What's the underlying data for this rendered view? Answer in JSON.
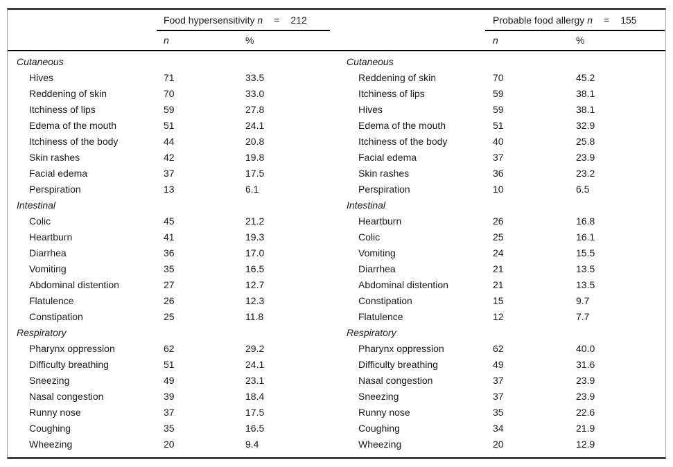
{
  "left_table": {
    "header": {
      "title": "Food hypersensitivity",
      "n_symbol": "n",
      "equals": "=",
      "total": "212"
    },
    "subheader": {
      "n": "n",
      "pct": "%"
    },
    "sections": [
      {
        "label": "Cutaneous",
        "rows": [
          {
            "symptom": "Hives",
            "n": "71",
            "pct": "33.5"
          },
          {
            "symptom": "Reddening of skin",
            "n": "70",
            "pct": "33.0"
          },
          {
            "symptom": "Itchiness of lips",
            "n": "59",
            "pct": "27.8"
          },
          {
            "symptom": "Edema of the mouth",
            "n": "51",
            "pct": "24.1"
          },
          {
            "symptom": "Itchiness of the body",
            "n": "44",
            "pct": "20.8"
          },
          {
            "symptom": "Skin rashes",
            "n": "42",
            "pct": "19.8"
          },
          {
            "symptom": "Facial edema",
            "n": "37",
            "pct": "17.5"
          },
          {
            "symptom": "Perspiration",
            "n": "13",
            "pct": "6.1"
          }
        ]
      },
      {
        "label": "Intestinal",
        "rows": [
          {
            "symptom": "Colic",
            "n": "45",
            "pct": "21.2"
          },
          {
            "symptom": "Heartburn",
            "n": "41",
            "pct": "19.3"
          },
          {
            "symptom": "Diarrhea",
            "n": "36",
            "pct": "17.0"
          },
          {
            "symptom": "Vomiting",
            "n": "35",
            "pct": "16.5"
          },
          {
            "symptom": "Abdominal distention",
            "n": "27",
            "pct": "12.7"
          },
          {
            "symptom": "Flatulence",
            "n": "26",
            "pct": "12.3"
          },
          {
            "symptom": "Constipation",
            "n": "25",
            "pct": "11.8"
          }
        ]
      },
      {
        "label": "Respiratory",
        "rows": [
          {
            "symptom": "Pharynx oppression",
            "n": "62",
            "pct": "29.2"
          },
          {
            "symptom": "Difficulty breathing",
            "n": "51",
            "pct": "24.1"
          },
          {
            "symptom": "Sneezing",
            "n": "49",
            "pct": "23.1"
          },
          {
            "symptom": "Nasal congestion",
            "n": "39",
            "pct": "18.4"
          },
          {
            "symptom": "Runny nose",
            "n": "37",
            "pct": "17.5"
          },
          {
            "symptom": "Coughing",
            "n": "35",
            "pct": "16.5"
          },
          {
            "symptom": "Wheezing",
            "n": "20",
            "pct": "9.4"
          }
        ]
      }
    ]
  },
  "right_table": {
    "header": {
      "title": "Probable food allergy",
      "n_symbol": "n",
      "equals": "=",
      "total": "155"
    },
    "subheader": {
      "n": "n",
      "pct": "%"
    },
    "sections": [
      {
        "label": "Cutaneous",
        "rows": [
          {
            "symptom": "Reddening of skin",
            "n": "70",
            "pct": "45.2"
          },
          {
            "symptom": "Itchiness of lips",
            "n": "59",
            "pct": "38.1"
          },
          {
            "symptom": "Hives",
            "n": "59",
            "pct": "38.1"
          },
          {
            "symptom": "Edema of the mouth",
            "n": "51",
            "pct": "32.9"
          },
          {
            "symptom": "Itchiness of the body",
            "n": "40",
            "pct": "25.8"
          },
          {
            "symptom": "Facial edema",
            "n": "37",
            "pct": "23.9"
          },
          {
            "symptom": "Skin rashes",
            "n": "36",
            "pct": "23.2"
          },
          {
            "symptom": "Perspiration",
            "n": "10",
            "pct": "6.5"
          }
        ]
      },
      {
        "label": "Intestinal",
        "rows": [
          {
            "symptom": "Heartburn",
            "n": "26",
            "pct": "16.8"
          },
          {
            "symptom": "Colic",
            "n": "25",
            "pct": "16.1"
          },
          {
            "symptom": "Vomiting",
            "n": "24",
            "pct": "15.5"
          },
          {
            "symptom": "Diarrhea",
            "n": "21",
            "pct": "13.5"
          },
          {
            "symptom": "Abdominal distention",
            "n": "21",
            "pct": "13.5"
          },
          {
            "symptom": "Constipation",
            "n": "15",
            "pct": "9.7"
          },
          {
            "symptom": "Flatulence",
            "n": "12",
            "pct": "7.7"
          }
        ]
      },
      {
        "label": "Respiratory",
        "rows": [
          {
            "symptom": "Pharynx oppression",
            "n": "62",
            "pct": "40.0"
          },
          {
            "symptom": "Difficulty breathing",
            "n": "49",
            "pct": "31.6"
          },
          {
            "symptom": "Nasal congestion",
            "n": "37",
            "pct": "23.9"
          },
          {
            "symptom": "Sneezing",
            "n": "37",
            "pct": "23.9"
          },
          {
            "symptom": "Runny nose",
            "n": "35",
            "pct": "22.6"
          },
          {
            "symptom": "Coughing",
            "n": "34",
            "pct": "21.9"
          },
          {
            "symptom": "Wheezing",
            "n": "20",
            "pct": "12.9"
          }
        ]
      }
    ]
  }
}
